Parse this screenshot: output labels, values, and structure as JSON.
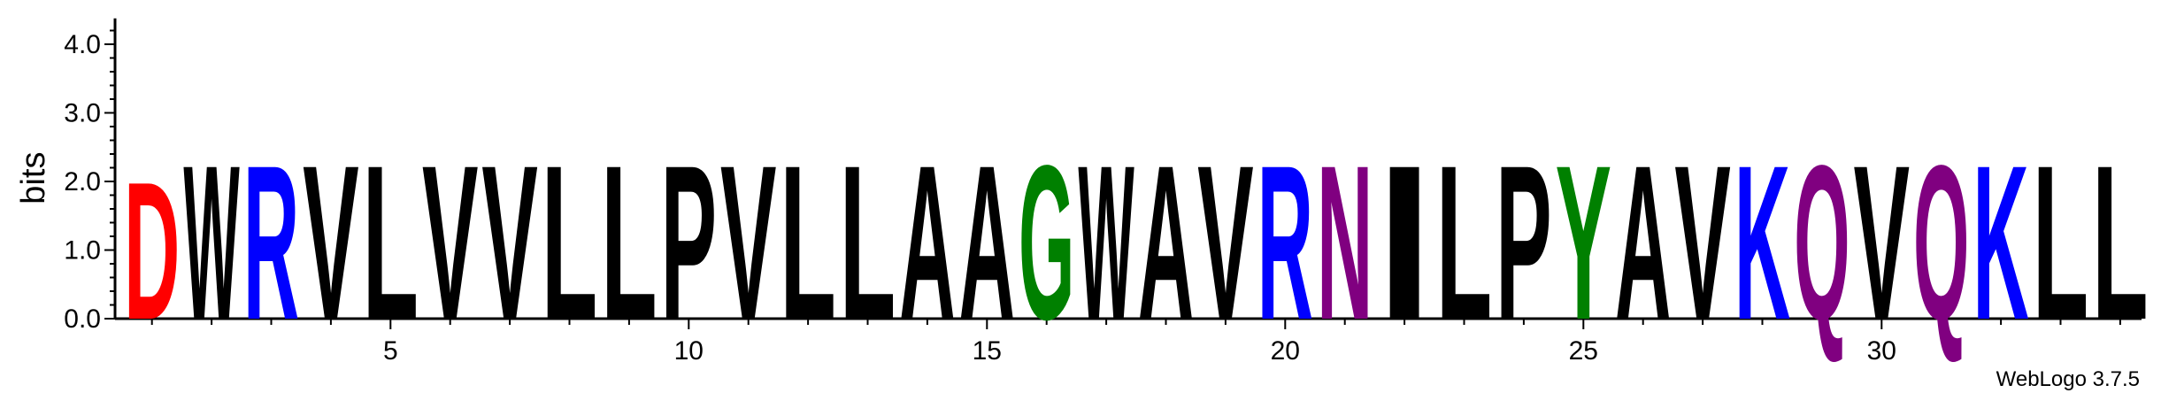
{
  "chart_data": {
    "type": "sequence-logo",
    "ylabel": "bits",
    "ylim": [
      0,
      4.3
    ],
    "y_ticks": [
      "0.0",
      "1.0",
      "2.0",
      "3.0",
      "4.0"
    ],
    "x_ticks": [
      "5",
      "10",
      "15",
      "20",
      "25",
      "30"
    ],
    "x_tick_values": [
      5,
      10,
      15,
      20,
      25,
      30
    ],
    "credit": "WebLogo 3.7.5",
    "colors": {
      "hydrophobic": "#000000",
      "basic": "#0000ff",
      "acidic": "#ff0000",
      "polar": "#008000",
      "amide": "#800080"
    },
    "positions": [
      {
        "pos": 1,
        "letter": "D",
        "bits": 2.05,
        "color": "#ff0000"
      },
      {
        "pos": 2,
        "letter": "W",
        "bits": 2.3,
        "color": "#000000"
      },
      {
        "pos": 3,
        "letter": "R",
        "bits": 2.3,
        "color": "#0000ff"
      },
      {
        "pos": 4,
        "letter": "V",
        "bits": 2.3,
        "color": "#000000"
      },
      {
        "pos": 5,
        "letter": "L",
        "bits": 2.3,
        "color": "#000000"
      },
      {
        "pos": 6,
        "letter": "V",
        "bits": 2.3,
        "color": "#000000"
      },
      {
        "pos": 7,
        "letter": "V",
        "bits": 2.3,
        "color": "#000000"
      },
      {
        "pos": 8,
        "letter": "L",
        "bits": 2.3,
        "color": "#000000"
      },
      {
        "pos": 9,
        "letter": "L",
        "bits": 2.3,
        "color": "#000000"
      },
      {
        "pos": 10,
        "letter": "P",
        "bits": 2.3,
        "color": "#000000"
      },
      {
        "pos": 11,
        "letter": "V",
        "bits": 2.3,
        "color": "#000000"
      },
      {
        "pos": 12,
        "letter": "L",
        "bits": 2.3,
        "color": "#000000"
      },
      {
        "pos": 13,
        "letter": "L",
        "bits": 2.3,
        "color": "#000000"
      },
      {
        "pos": 14,
        "letter": "A",
        "bits": 2.3,
        "color": "#000000"
      },
      {
        "pos": 15,
        "letter": "A",
        "bits": 2.3,
        "color": "#000000"
      },
      {
        "pos": 16,
        "letter": "G",
        "bits": 2.3,
        "color": "#008000"
      },
      {
        "pos": 17,
        "letter": "W",
        "bits": 2.3,
        "color": "#000000"
      },
      {
        "pos": 18,
        "letter": "A",
        "bits": 2.3,
        "color": "#000000"
      },
      {
        "pos": 19,
        "letter": "V",
        "bits": 2.3,
        "color": "#000000"
      },
      {
        "pos": 20,
        "letter": "R",
        "bits": 2.3,
        "color": "#0000ff"
      },
      {
        "pos": 21,
        "letter": "N",
        "bits": 2.3,
        "color": "#800080"
      },
      {
        "pos": 22,
        "letter": "I",
        "bits": 2.3,
        "color": "#000000"
      },
      {
        "pos": 23,
        "letter": "L",
        "bits": 2.3,
        "color": "#000000"
      },
      {
        "pos": 24,
        "letter": "P",
        "bits": 2.3,
        "color": "#000000"
      },
      {
        "pos": 25,
        "letter": "Y",
        "bits": 2.3,
        "color": "#008000"
      },
      {
        "pos": 26,
        "letter": "A",
        "bits": 2.3,
        "color": "#000000"
      },
      {
        "pos": 27,
        "letter": "V",
        "bits": 2.3,
        "color": "#000000"
      },
      {
        "pos": 28,
        "letter": "K",
        "bits": 2.3,
        "color": "#0000ff"
      },
      {
        "pos": 29,
        "letter": "Q",
        "bits": 2.3,
        "color": "#800080"
      },
      {
        "pos": 30,
        "letter": "V",
        "bits": 2.3,
        "color": "#000000"
      },
      {
        "pos": 31,
        "letter": "Q",
        "bits": 2.3,
        "color": "#800080"
      },
      {
        "pos": 32,
        "letter": "K",
        "bits": 2.3,
        "color": "#0000ff"
      },
      {
        "pos": 33,
        "letter": "L",
        "bits": 2.3,
        "color": "#000000"
      },
      {
        "pos": 34,
        "letter": "L",
        "bits": 2.3,
        "color": "#000000"
      }
    ]
  }
}
